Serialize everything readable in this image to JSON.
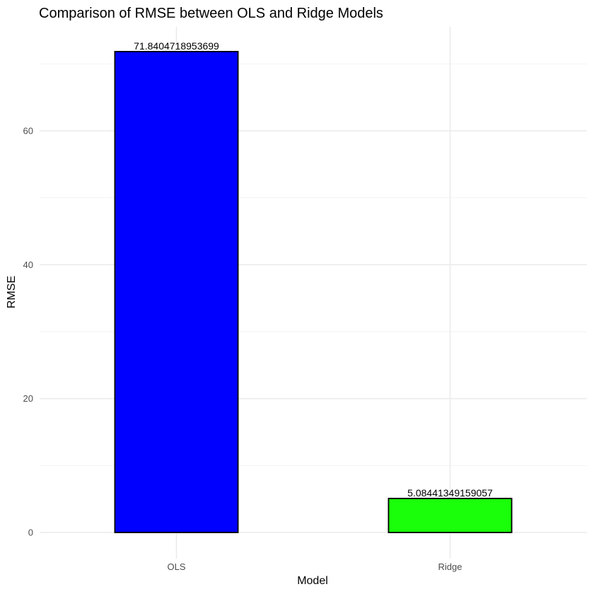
{
  "chart_data": {
    "type": "bar",
    "title": "Comparison of RMSE between OLS and Ridge Models",
    "xlabel": "Model",
    "ylabel": "RMSE",
    "categories": [
      "OLS",
      "Ridge"
    ],
    "values": [
      71.8404718953699,
      5.08441349159057
    ],
    "data_labels": [
      "71.8404718953699",
      "5.08441349159057"
    ],
    "bar_colors": [
      "#0000ff",
      "#1aff0a"
    ],
    "bar_outline": "#000000",
    "ylim": [
      0,
      75.5
    ],
    "y_ticks": [
      0,
      20,
      40,
      60
    ],
    "grid": true,
    "legend": "none"
  }
}
